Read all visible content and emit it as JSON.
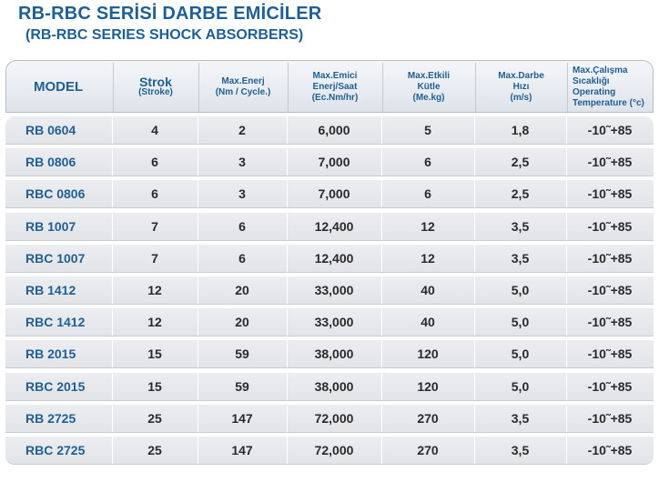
{
  "title": "RB-RBC SERİSİ DARBE EMİCİLER",
  "subtitle": "(RB-RBC SERIES SHOCK ABSORBERS)",
  "columns": [
    {
      "key": "model",
      "lines": [
        "MODEL"
      ]
    },
    {
      "key": "strok",
      "lines": [
        "Strok",
        "(Stroke)"
      ]
    },
    {
      "key": "enerj",
      "lines": [
        "Max.Enerj",
        "(Nm / Cycle.)"
      ]
    },
    {
      "key": "emici",
      "lines": [
        "Max.Emici",
        "Enerj/Saat",
        "(Ec.Nm/hr)"
      ]
    },
    {
      "key": "kutle",
      "lines": [
        "Max.Etkili",
        "Kütle",
        "(Me.kg)"
      ]
    },
    {
      "key": "hiz",
      "lines": [
        "Max.Darbe",
        "Hızı",
        "(m/s)"
      ]
    },
    {
      "key": "temp",
      "lines": [
        "Max.Çalışma",
        "Sıcaklığı",
        "Operating",
        "Temperature (°c)"
      ]
    }
  ],
  "rows": [
    [
      "RB 0604",
      "4",
      "2",
      "6,000",
      "5",
      "1,8",
      "-10˜+85"
    ],
    [
      "RB 0806",
      "6",
      "3",
      "7,000",
      "6",
      "2,5",
      "-10˜+85"
    ],
    [
      "RBC 0806",
      "6",
      "3",
      "7,000",
      "6",
      "2,5",
      "-10˜+85"
    ],
    [
      "RB 1007",
      "7",
      "6",
      "12,400",
      "12",
      "3,5",
      "-10˜+85"
    ],
    [
      "RBC 1007",
      "7",
      "6",
      "12,400",
      "12",
      "3,5",
      "-10˜+85"
    ],
    [
      "RB 1412",
      "12",
      "20",
      "33,000",
      "40",
      "5,0",
      "-10˜+85"
    ],
    [
      "RBC 1412",
      "12",
      "20",
      "33,000",
      "40",
      "5,0",
      "-10˜+85"
    ],
    [
      "RB 2015",
      "15",
      "59",
      "38,000",
      "120",
      "5,0",
      "-10˜+85"
    ],
    [
      "RBC 2015",
      "15",
      "59",
      "38,000",
      "120",
      "5,0",
      "-10˜+85"
    ],
    [
      "RB 2725",
      "25",
      "147",
      "72,000",
      "270",
      "3,5",
      "-10˜+85"
    ],
    [
      "RBC 2725",
      "25",
      "147",
      "72,000",
      "270",
      "3,5",
      "-10˜+85"
    ]
  ],
  "colors": {
    "accent": "#1f5f93",
    "row_bg": "#e6e8ec"
  }
}
